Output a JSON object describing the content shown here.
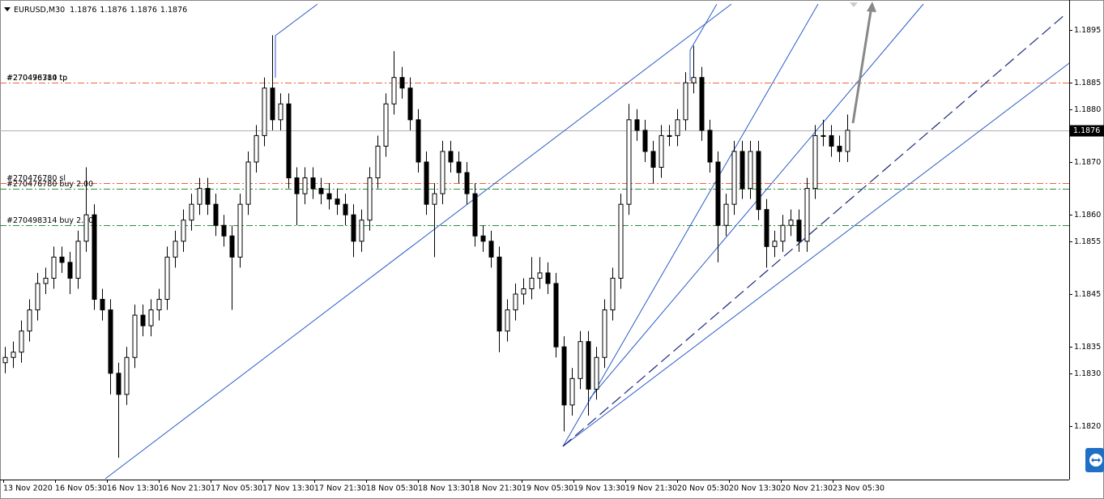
{
  "chart_data": {
    "type": "candlestick",
    "symbol": "EURUSD,M30",
    "quote": [
      1.1876,
      1.1876,
      1.1876,
      1.1876
    ],
    "up_color": "#ffffff",
    "down_color": "#000000",
    "open": [
      1.1832,
      1.1833,
      1.1834,
      1.1838,
      1.1842,
      1.1847,
      1.1848,
      1.1852,
      1.1851,
      1.1848,
      1.1855,
      1.186,
      1.1844,
      1.1842,
      1.183,
      1.1826,
      1.1833,
      1.1841,
      1.1839,
      1.1842,
      1.1844,
      1.1852,
      1.1855,
      1.1859,
      1.1862,
      1.1865,
      1.1862,
      1.1858,
      1.1856,
      1.1852,
      1.1862,
      1.187,
      1.1875,
      1.1884,
      1.1878,
      1.1881,
      1.1867,
      1.1864,
      1.1867,
      1.1865,
      1.1864,
      1.1863,
      1.1862,
      1.186,
      1.1855,
      1.1859,
      1.1867,
      1.1873,
      1.1881,
      1.1886,
      1.1884,
      1.1878,
      1.187,
      1.1862,
      1.1864,
      1.1872,
      1.187,
      1.1868,
      1.1864,
      1.1856,
      1.1855,
      1.1852,
      1.1838,
      1.1842,
      1.1845,
      1.1846,
      1.1848,
      1.1849,
      1.1847,
      1.1835,
      1.1824,
      1.1829,
      1.1836,
      1.1827,
      1.1833,
      1.1842,
      1.1848,
      1.1862,
      1.1878,
      1.1876,
      1.1872,
      1.1869,
      1.1875,
      1.1875,
      1.1878,
      1.1885,
      1.1886,
      1.1876,
      1.187,
      1.1858,
      1.1862,
      1.1872,
      1.1865,
      1.1872,
      1.1861,
      1.1854,
      1.1855,
      1.1858,
      1.1859,
      1.1855,
      1.1865,
      1.1875,
      1.1875,
      1.1873,
      1.1872
    ],
    "high": [
      1.1835,
      1.1836,
      1.184,
      1.1844,
      1.1849,
      1.185,
      1.1854,
      1.1854,
      1.1853,
      1.1857,
      1.1869,
      1.1862,
      1.1846,
      1.1844,
      1.1832,
      1.1835,
      1.1843,
      1.1843,
      1.1844,
      1.1846,
      1.1854,
      1.1857,
      1.1861,
      1.1864,
      1.1867,
      1.1867,
      1.1864,
      1.186,
      1.1858,
      1.1864,
      1.1872,
      1.1877,
      1.1886,
      1.1894,
      1.1883,
      1.1883,
      1.1869,
      1.1869,
      1.1869,
      1.1867,
      1.1866,
      1.1865,
      1.1864,
      1.1862,
      1.1861,
      1.1869,
      1.1875,
      1.1883,
      1.1891,
      1.1888,
      1.1886,
      1.188,
      1.1872,
      1.1866,
      1.1874,
      1.1874,
      1.1872,
      1.187,
      1.1866,
      1.1858,
      1.1857,
      1.1854,
      1.1844,
      1.1847,
      1.1848,
      1.1852,
      1.1852,
      1.1851,
      1.1849,
      1.1837,
      1.1831,
      1.1838,
      1.1838,
      1.1835,
      1.1844,
      1.185,
      1.1864,
      1.1881,
      1.188,
      1.1878,
      1.1874,
      1.1877,
      1.1877,
      1.188,
      1.1887,
      1.1892,
      1.1888,
      1.1878,
      1.1872,
      1.1864,
      1.1874,
      1.1874,
      1.1874,
      1.1874,
      1.1863,
      1.1857,
      1.186,
      1.1861,
      1.1861,
      1.1867,
      1.1877,
      1.1878,
      1.1877,
      1.1875,
      1.1879
    ],
    "low": [
      1.183,
      1.1831,
      1.1832,
      1.1836,
      1.184,
      1.1845,
      1.1846,
      1.1849,
      1.1845,
      1.1846,
      1.1853,
      1.1842,
      1.184,
      1.1826,
      1.1814,
      1.1824,
      1.1831,
      1.1837,
      1.1837,
      1.184,
      1.1842,
      1.185,
      1.1853,
      1.1857,
      1.186,
      1.186,
      1.1856,
      1.1854,
      1.1842,
      1.185,
      1.186,
      1.1868,
      1.1873,
      1.1876,
      1.1876,
      1.1865,
      1.1858,
      1.1862,
      1.1863,
      1.1862,
      1.1861,
      1.186,
      1.1858,
      1.1852,
      1.1853,
      1.1857,
      1.1865,
      1.1871,
      1.1879,
      1.1882,
      1.1876,
      1.1868,
      1.186,
      1.1852,
      1.1862,
      1.1868,
      1.1866,
      1.1862,
      1.1854,
      1.1853,
      1.185,
      1.1834,
      1.1836,
      1.184,
      1.1843,
      1.1844,
      1.1846,
      1.1845,
      1.1833,
      1.1819,
      1.1822,
      1.1827,
      1.1822,
      1.1825,
      1.1831,
      1.184,
      1.1846,
      1.186,
      1.1874,
      1.187,
      1.1866,
      1.1867,
      1.1873,
      1.1873,
      1.1876,
      1.1883,
      1.1874,
      1.1868,
      1.1851,
      1.1856,
      1.186,
      1.1863,
      1.1863,
      1.1859,
      1.185,
      1.1852,
      1.1853,
      1.1856,
      1.1853,
      1.1853,
      1.1863,
      1.1873,
      1.1871,
      1.187,
      1.187
    ],
    "close": [
      1.1833,
      1.1834,
      1.1838,
      1.1842,
      1.1847,
      1.1848,
      1.1852,
      1.1851,
      1.1848,
      1.1855,
      1.186,
      1.1844,
      1.1842,
      1.183,
      1.1826,
      1.1833,
      1.1841,
      1.1839,
      1.1842,
      1.1844,
      1.1852,
      1.1855,
      1.1859,
      1.1862,
      1.1865,
      1.1862,
      1.1858,
      1.1856,
      1.1852,
      1.1862,
      1.187,
      1.1875,
      1.1884,
      1.1878,
      1.1881,
      1.1867,
      1.1864,
      1.1867,
      1.1865,
      1.1864,
      1.1863,
      1.1862,
      1.186,
      1.1855,
      1.1859,
      1.1867,
      1.1873,
      1.1881,
      1.1886,
      1.1884,
      1.1878,
      1.187,
      1.1862,
      1.1864,
      1.1872,
      1.187,
      1.1868,
      1.1864,
      1.1856,
      1.1855,
      1.1852,
      1.1838,
      1.1842,
      1.1845,
      1.1846,
      1.1848,
      1.1849,
      1.1847,
      1.1835,
      1.1824,
      1.1829,
      1.1836,
      1.1827,
      1.1833,
      1.1842,
      1.1848,
      1.1862,
      1.1878,
      1.1876,
      1.1872,
      1.1869,
      1.1875,
      1.1875,
      1.1878,
      1.1885,
      1.1886,
      1.1876,
      1.187,
      1.1858,
      1.1862,
      1.1872,
      1.1865,
      1.1872,
      1.1861,
      1.1854,
      1.1855,
      1.1858,
      1.1859,
      1.1855,
      1.1865,
      1.1875,
      1.1875,
      1.1873,
      1.1872,
      1.1876
    ],
    "ylim": [
      1.181,
      1.19
    ],
    "yticks": [
      1.1895,
      1.1885,
      {
        "value": 1.188,
        "label": "1.1880"
      },
      {
        "value": 1.187,
        "label": "1.1870"
      },
      {
        "value": 1.186,
        "label": "1.1860"
      },
      1.1855,
      1.1845,
      1.1835,
      {
        "value": 1.183,
        "label": "1.1830"
      },
      {
        "value": 1.182,
        "label": "1.1820"
      }
    ],
    "x_labels": [
      "13 Nov 2020",
      "16 Nov 05:30",
      "16 Nov 13:30",
      "16 Nov 21:30",
      "17 Nov 05:30",
      "17 Nov 13:30",
      "17 Nov 21:30",
      "18 Nov 05:30",
      "18 Nov 13:30",
      "18 Nov 21:30",
      "19 Nov 05:30",
      "19 Nov 13:30",
      "19 Nov 21:30",
      "20 Nov 05:30",
      "20 Nov 13:30",
      "20 Nov 21:30",
      "23 Nov 05:30"
    ],
    "bid": 1.1876,
    "order_lines": [
      {
        "label": "#270476780 tp",
        "price": 1.1885,
        "color": "#e8663d"
      },
      {
        "label": "#270498314 tp",
        "price": 1.1885,
        "color": "#e8663d"
      },
      {
        "label": "#270476780 sl",
        "price": 1.1866,
        "color": "#e8663d"
      },
      {
        "label": "#270476780 buy 2.00",
        "price": 1.1865,
        "color": "#2e8b3e"
      },
      {
        "label": "#270498314 buy 2.00",
        "price": 1.1858,
        "color": "#2e8b3e"
      }
    ]
  }
}
